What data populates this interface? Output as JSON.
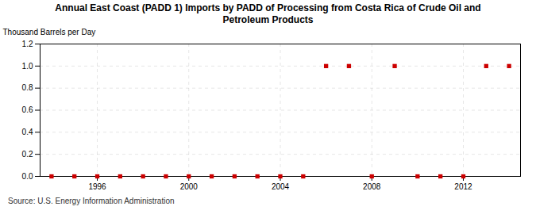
{
  "chart_data": {
    "type": "scatter",
    "title": "Annual East Coast (PADD 1) Imports by PADD of Processing from Costa Rica of Crude Oil and\nPetroleum Products",
    "ylabel": "Thousand Barrels per Day",
    "source": "Source: U.S. Energy Information Administration",
    "x": [
      1994,
      1995,
      1996,
      1997,
      1998,
      1999,
      2000,
      2001,
      2002,
      2003,
      2004,
      2005,
      2006,
      2007,
      2008,
      2009,
      2010,
      2011,
      2012,
      2013,
      2014
    ],
    "values": [
      0,
      0,
      0,
      0,
      0,
      0,
      0,
      0,
      0,
      0,
      0,
      0,
      1.0,
      1.0,
      0,
      1.0,
      0,
      0,
      0,
      1.0,
      1.0
    ],
    "color": "#cc0000",
    "marker": "square",
    "xlim": [
      1993.5,
      2014.5
    ],
    "xticks": [
      1996,
      2000,
      2004,
      2008,
      2012
    ],
    "ylim": [
      0,
      1.2
    ],
    "yticks": [
      {
        "value": 0,
        "label": "0.0"
      },
      0.2,
      0.4,
      0.6,
      0.8,
      {
        "value": 1,
        "label": "1.0"
      },
      1.2
    ],
    "grid": true
  }
}
